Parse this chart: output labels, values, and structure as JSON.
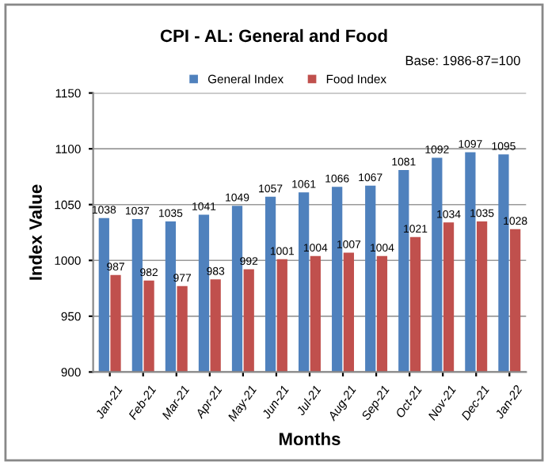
{
  "chart_data": {
    "type": "bar",
    "title": "CPI - AL: General and Food",
    "xlabel": "Months",
    "ylabel": "Index Value",
    "annotations": [
      "Base: 1986-87=100"
    ],
    "categories": [
      "Jan-21",
      "Feb-21",
      "Mar-21",
      "Apr-21",
      "May-21",
      "Jun-21",
      "Jul-21",
      "Aug-21",
      "Sep-21",
      "Oct-21",
      "Nov-21",
      "Dec-21",
      "Jan-22"
    ],
    "series": [
      {
        "name": "General Index",
        "color": "#4f81bd",
        "values": [
          1038,
          1037,
          1035,
          1041,
          1049,
          1057,
          1061,
          1066,
          1067,
          1081,
          1092,
          1097,
          1095
        ]
      },
      {
        "name": "Food Index",
        "color": "#c0504d",
        "values": [
          987,
          982,
          977,
          983,
          992,
          1001,
          1004,
          1007,
          1004,
          1021,
          1034,
          1035,
          1028
        ]
      }
    ],
    "ylim": [
      900,
      1150
    ],
    "yticks": [
      900,
      950,
      1000,
      1050,
      1100,
      1150
    ],
    "grid": "y",
    "legend": "top",
    "data_labels": true
  }
}
